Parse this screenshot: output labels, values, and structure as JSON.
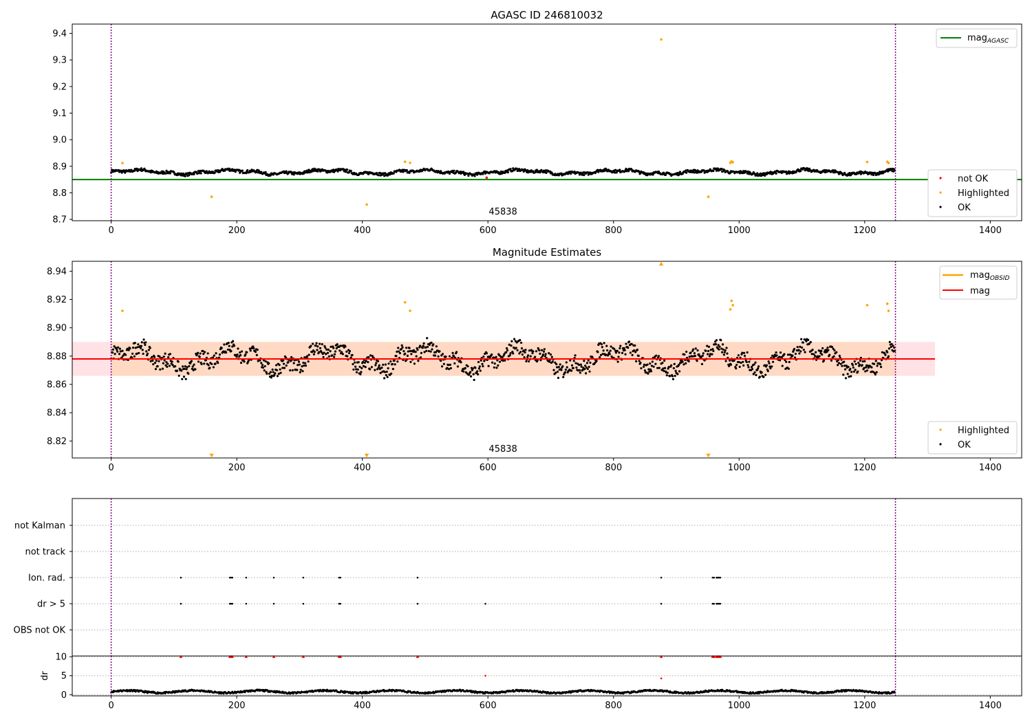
{
  "chart_data": [
    {
      "type": "scatter",
      "title": "AGASC ID 246810032",
      "xlim": [
        -62,
        1450
      ],
      "ylim": [
        8.695,
        9.435
      ],
      "xticks": [
        0,
        200,
        400,
        600,
        800,
        1000,
        1200,
        1400
      ],
      "yticks": [
        8.7,
        8.8,
        8.9,
        9.0,
        9.1,
        9.2,
        9.3,
        9.4
      ],
      "ytick_labels": [
        "8.7",
        "8.8",
        "8.9",
        "9.0",
        "9.1",
        "9.2",
        "9.3",
        "9.4"
      ],
      "obsid_label": {
        "text": "45838",
        "x": 624
      },
      "obsid_bounds": [
        0,
        1249
      ],
      "reference_line": {
        "name": "mag",
        "subscript": "AGASC",
        "value": 8.85,
        "color": "#008000"
      },
      "legend_top": [
        {
          "label": "mag",
          "subscript": "AGASC",
          "color": "#008000",
          "kind": "line"
        }
      ],
      "legend_bottom": [
        {
          "label": "not OK",
          "color": "#ff0000",
          "kind": "dot"
        },
        {
          "label": "Highlighted",
          "color": "#ffa500",
          "kind": "dot"
        },
        {
          "label": "OK",
          "color": "#000000",
          "kind": "dot"
        }
      ],
      "series": [
        {
          "name": "OK",
          "color": "#000000",
          "n": 1249,
          "baseline": 8.878,
          "spread": 0.012
        },
        {
          "name": "Highlighted",
          "color": "#ffa500",
          "points": [
            [
              18,
              8.912
            ],
            [
              160,
              8.785
            ],
            [
              407,
              8.756
            ],
            [
              468,
              8.917
            ],
            [
              476,
              8.913
            ],
            [
              876,
              9.377
            ],
            [
              951,
              8.785
            ],
            [
              986,
              8.913
            ],
            [
              988,
              8.918
            ],
            [
              990,
              8.915
            ],
            [
              1204,
              8.916
            ],
            [
              1236,
              8.917
            ],
            [
              1238,
              8.912
            ]
          ]
        },
        {
          "name": "not OK",
          "color": "#ff0000",
          "points": [
            [
              598,
              8.857
            ]
          ]
        }
      ]
    },
    {
      "type": "scatter",
      "title": "Magnitude Estimates",
      "xlim": [
        -62,
        1450
      ],
      "ylim": [
        8.808,
        8.947
      ],
      "xticks": [
        0,
        200,
        400,
        600,
        800,
        1000,
        1200,
        1400
      ],
      "yticks": [
        8.82,
        8.84,
        8.86,
        8.88,
        8.9,
        8.92,
        8.94
      ],
      "ytick_labels": [
        "8.82",
        "8.84",
        "8.86",
        "8.88",
        "8.90",
        "8.92",
        "8.94"
      ],
      "obsid_label": {
        "text": "45838",
        "x": 624
      },
      "obsid_bounds": [
        0,
        1249
      ],
      "bands": [
        {
          "name": "mag range",
          "x": [
            -62,
            1312
          ],
          "y": [
            8.866,
            8.89
          ],
          "color": "#ffb6c1"
        },
        {
          "name": "mag_OBSID range",
          "x": [
            0,
            1249
          ],
          "y": [
            8.866,
            8.89
          ],
          "color": "#ffa500"
        }
      ],
      "lines": [
        {
          "name": "mag",
          "value": 8.878,
          "x": [
            -62,
            1312
          ],
          "color": "#ff0000"
        },
        {
          "name": "mag",
          "subscript": "OBSID",
          "value": 8.878,
          "x": [
            0,
            1249
          ],
          "color": "#ffa500"
        }
      ],
      "legend_top": [
        {
          "label": "mag",
          "subscript": "OBSID",
          "color": "#ffa500",
          "kind": "line"
        },
        {
          "label": "mag",
          "color": "#ff0000",
          "kind": "line"
        }
      ],
      "legend_bottom": [
        {
          "label": "Highlighted",
          "color": "#ffa500",
          "kind": "dot"
        },
        {
          "label": "OK",
          "color": "#000000",
          "kind": "dot"
        }
      ],
      "series": [
        {
          "name": "OK",
          "color": "#000000",
          "n": 1249,
          "baseline": 8.878,
          "spread": 0.012
        },
        {
          "name": "Highlighted",
          "color": "#ffa500",
          "points": [
            [
              18,
              8.912
            ],
            [
              468,
              8.918
            ],
            [
              476,
              8.912
            ],
            [
              986,
              8.913
            ],
            [
              988,
              8.919
            ],
            [
              990,
              8.916
            ],
            [
              1204,
              8.916
            ],
            [
              1236,
              8.917
            ],
            [
              1238,
              8.912
            ]
          ]
        },
        {
          "name": "Highlighted (out of range, above)",
          "color": "#ffa500",
          "marker": "triangle-up",
          "points": [
            [
              876,
              8.947
            ]
          ]
        },
        {
          "name": "Highlighted (out of range, below)",
          "color": "#ffa500",
          "marker": "triangle-down",
          "points": [
            [
              160,
              8.808
            ],
            [
              407,
              8.808
            ],
            [
              951,
              8.808
            ]
          ]
        }
      ]
    },
    {
      "type": "scatter",
      "title": "",
      "xlim": [
        -62,
        1450
      ],
      "categories": [
        "not Kalman",
        "not track",
        "Ion. rad.",
        "dr > 5",
        "OBS not OK"
      ],
      "flags": {
        "Ion. rad.": [
          111,
          189,
          191,
          193,
          215,
          259,
          306,
          363,
          365,
          488,
          876,
          958,
          960,
          964,
          966,
          968,
          970
        ],
        "dr > 5": [
          111,
          189,
          191,
          193,
          215,
          259,
          306,
          363,
          365,
          488,
          596,
          876,
          958,
          960,
          964,
          966,
          968,
          970
        ]
      },
      "obsid_bounds": [
        0,
        1249
      ]
    },
    {
      "type": "scatter",
      "title": "",
      "ylabel": "dr",
      "xlim": [
        -62,
        1450
      ],
      "ylim": [
        -0.3,
        10.2
      ],
      "xticks": [
        0,
        200,
        400,
        600,
        800,
        1000,
        1200,
        1400
      ],
      "yticks": [
        0,
        5,
        10
      ],
      "ytick_labels": [
        "0",
        "5",
        "10"
      ],
      "obsid_bounds": [
        0,
        1249
      ],
      "series": [
        {
          "name": "dr",
          "color": "#000000",
          "n": 1249,
          "baseline": 0.8,
          "spread": 0.4
        },
        {
          "name": "dr (out of range)",
          "color": "#ff0000",
          "marker": "triangle-up",
          "y": 10,
          "x": [
            111,
            189,
            191,
            193,
            215,
            259,
            306,
            363,
            365,
            488,
            876,
            958,
            960,
            964,
            966,
            968,
            970
          ]
        },
        {
          "name": "dr (high)",
          "color": "#ff0000",
          "points": [
            [
              596,
              5.0
            ],
            [
              876,
              4.3
            ]
          ]
        }
      ]
    }
  ]
}
